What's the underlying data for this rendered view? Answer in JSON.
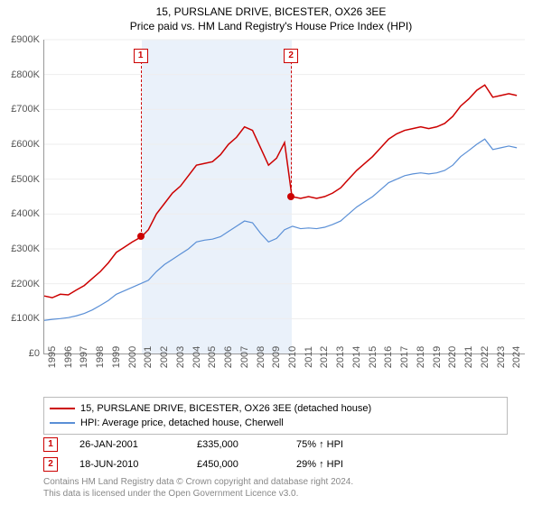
{
  "title": "15, PURSLANE DRIVE, BICESTER, OX26 3EE",
  "subtitle": "Price paid vs. HM Land Registry's House Price Index (HPI)",
  "chart": {
    "type": "line",
    "ylim": [
      0,
      900000
    ],
    "ytick_step": 100000,
    "ytick_labels": [
      "£0",
      "£100K",
      "£200K",
      "£300K",
      "£400K",
      "£500K",
      "£600K",
      "£700K",
      "£800K",
      "£900K"
    ],
    "xlim": [
      1995,
      2025
    ],
    "xtick_years": [
      1995,
      1996,
      1997,
      1998,
      1999,
      2000,
      2001,
      2002,
      2003,
      2004,
      2005,
      2006,
      2007,
      2008,
      2009,
      2010,
      2011,
      2012,
      2013,
      2014,
      2015,
      2016,
      2017,
      2018,
      2019,
      2020,
      2021,
      2022,
      2023,
      2024
    ],
    "background_color": "#ffffff",
    "shaded_region": {
      "x_start": 2001.07,
      "x_end": 2010.46,
      "color": "#eaf1fa"
    },
    "series": [
      {
        "name": "property",
        "label": "15, PURSLANE DRIVE, BICESTER, OX26 3EE (detached house)",
        "color": "#cc0000",
        "line_width": 1.5,
        "points": [
          [
            1995.0,
            165000
          ],
          [
            1995.5,
            160000
          ],
          [
            1996.0,
            170000
          ],
          [
            1996.5,
            168000
          ],
          [
            1997.0,
            182000
          ],
          [
            1997.5,
            195000
          ],
          [
            1998.0,
            215000
          ],
          [
            1998.5,
            235000
          ],
          [
            1999.0,
            260000
          ],
          [
            1999.5,
            290000
          ],
          [
            2000.0,
            305000
          ],
          [
            2000.5,
            320000
          ],
          [
            2001.07,
            335000
          ],
          [
            2001.5,
            355000
          ],
          [
            2002.0,
            400000
          ],
          [
            2002.5,
            430000
          ],
          [
            2003.0,
            460000
          ],
          [
            2003.5,
            480000
          ],
          [
            2004.0,
            510000
          ],
          [
            2004.5,
            540000
          ],
          [
            2005.0,
            545000
          ],
          [
            2005.5,
            550000
          ],
          [
            2006.0,
            570000
          ],
          [
            2006.5,
            600000
          ],
          [
            2007.0,
            620000
          ],
          [
            2007.5,
            650000
          ],
          [
            2008.0,
            640000
          ],
          [
            2008.5,
            590000
          ],
          [
            2009.0,
            540000
          ],
          [
            2009.5,
            560000
          ],
          [
            2010.0,
            605000
          ],
          [
            2010.46,
            450000
          ],
          [
            2011.0,
            445000
          ],
          [
            2011.5,
            450000
          ],
          [
            2012.0,
            445000
          ],
          [
            2012.5,
            450000
          ],
          [
            2013.0,
            460000
          ],
          [
            2013.5,
            475000
          ],
          [
            2014.0,
            500000
          ],
          [
            2014.5,
            525000
          ],
          [
            2015.0,
            545000
          ],
          [
            2015.5,
            565000
          ],
          [
            2016.0,
            590000
          ],
          [
            2016.5,
            615000
          ],
          [
            2017.0,
            630000
          ],
          [
            2017.5,
            640000
          ],
          [
            2018.0,
            645000
          ],
          [
            2018.5,
            650000
          ],
          [
            2019.0,
            645000
          ],
          [
            2019.5,
            650000
          ],
          [
            2020.0,
            660000
          ],
          [
            2020.5,
            680000
          ],
          [
            2021.0,
            710000
          ],
          [
            2021.5,
            730000
          ],
          [
            2022.0,
            755000
          ],
          [
            2022.5,
            770000
          ],
          [
            2023.0,
            735000
          ],
          [
            2023.5,
            740000
          ],
          [
            2024.0,
            745000
          ],
          [
            2024.5,
            740000
          ]
        ]
      },
      {
        "name": "hpi",
        "label": "HPI: Average price, detached house, Cherwell",
        "color": "#5a8fd6",
        "line_width": 1.2,
        "points": [
          [
            1995.0,
            95000
          ],
          [
            1995.5,
            98000
          ],
          [
            1996.0,
            100000
          ],
          [
            1996.5,
            103000
          ],
          [
            1997.0,
            108000
          ],
          [
            1997.5,
            115000
          ],
          [
            1998.0,
            125000
          ],
          [
            1998.5,
            138000
          ],
          [
            1999.0,
            152000
          ],
          [
            1999.5,
            170000
          ],
          [
            2000.0,
            180000
          ],
          [
            2000.5,
            190000
          ],
          [
            2001.0,
            200000
          ],
          [
            2001.5,
            210000
          ],
          [
            2002.0,
            235000
          ],
          [
            2002.5,
            255000
          ],
          [
            2003.0,
            270000
          ],
          [
            2003.5,
            285000
          ],
          [
            2004.0,
            300000
          ],
          [
            2004.5,
            320000
          ],
          [
            2005.0,
            325000
          ],
          [
            2005.5,
            328000
          ],
          [
            2006.0,
            335000
          ],
          [
            2006.5,
            350000
          ],
          [
            2007.0,
            365000
          ],
          [
            2007.5,
            380000
          ],
          [
            2008.0,
            375000
          ],
          [
            2008.5,
            345000
          ],
          [
            2009.0,
            320000
          ],
          [
            2009.5,
            330000
          ],
          [
            2010.0,
            355000
          ],
          [
            2010.5,
            365000
          ],
          [
            2011.0,
            358000
          ],
          [
            2011.5,
            360000
          ],
          [
            2012.0,
            358000
          ],
          [
            2012.5,
            362000
          ],
          [
            2013.0,
            370000
          ],
          [
            2013.5,
            380000
          ],
          [
            2014.0,
            400000
          ],
          [
            2014.5,
            420000
          ],
          [
            2015.0,
            435000
          ],
          [
            2015.5,
            450000
          ],
          [
            2016.0,
            470000
          ],
          [
            2016.5,
            490000
          ],
          [
            2017.0,
            500000
          ],
          [
            2017.5,
            510000
          ],
          [
            2018.0,
            515000
          ],
          [
            2018.5,
            518000
          ],
          [
            2019.0,
            515000
          ],
          [
            2019.5,
            518000
          ],
          [
            2020.0,
            525000
          ],
          [
            2020.5,
            540000
          ],
          [
            2021.0,
            565000
          ],
          [
            2021.5,
            582000
          ],
          [
            2022.0,
            600000
          ],
          [
            2022.5,
            615000
          ],
          [
            2023.0,
            585000
          ],
          [
            2023.5,
            590000
          ],
          [
            2024.0,
            595000
          ],
          [
            2024.5,
            590000
          ]
        ]
      }
    ],
    "markers": [
      {
        "id": "1",
        "x": 2001.07,
        "y": 335000
      },
      {
        "id": "2",
        "x": 2010.46,
        "y": 450000
      }
    ]
  },
  "legend": {
    "items": [
      {
        "label": "15, PURSLANE DRIVE, BICESTER, OX26 3EE (detached house)",
        "color": "#cc0000"
      },
      {
        "label": "HPI: Average price, detached house, Cherwell",
        "color": "#5a8fd6"
      }
    ]
  },
  "transactions": [
    {
      "id": "1",
      "date": "26-JAN-2001",
      "price": "£335,000",
      "pct": "75% ↑ HPI"
    },
    {
      "id": "2",
      "date": "18-JUN-2010",
      "price": "£450,000",
      "pct": "29% ↑ HPI"
    }
  ],
  "footer": {
    "line1": "Contains HM Land Registry data © Crown copyright and database right 2024.",
    "line2": "This data is licensed under the Open Government Licence v3.0."
  }
}
